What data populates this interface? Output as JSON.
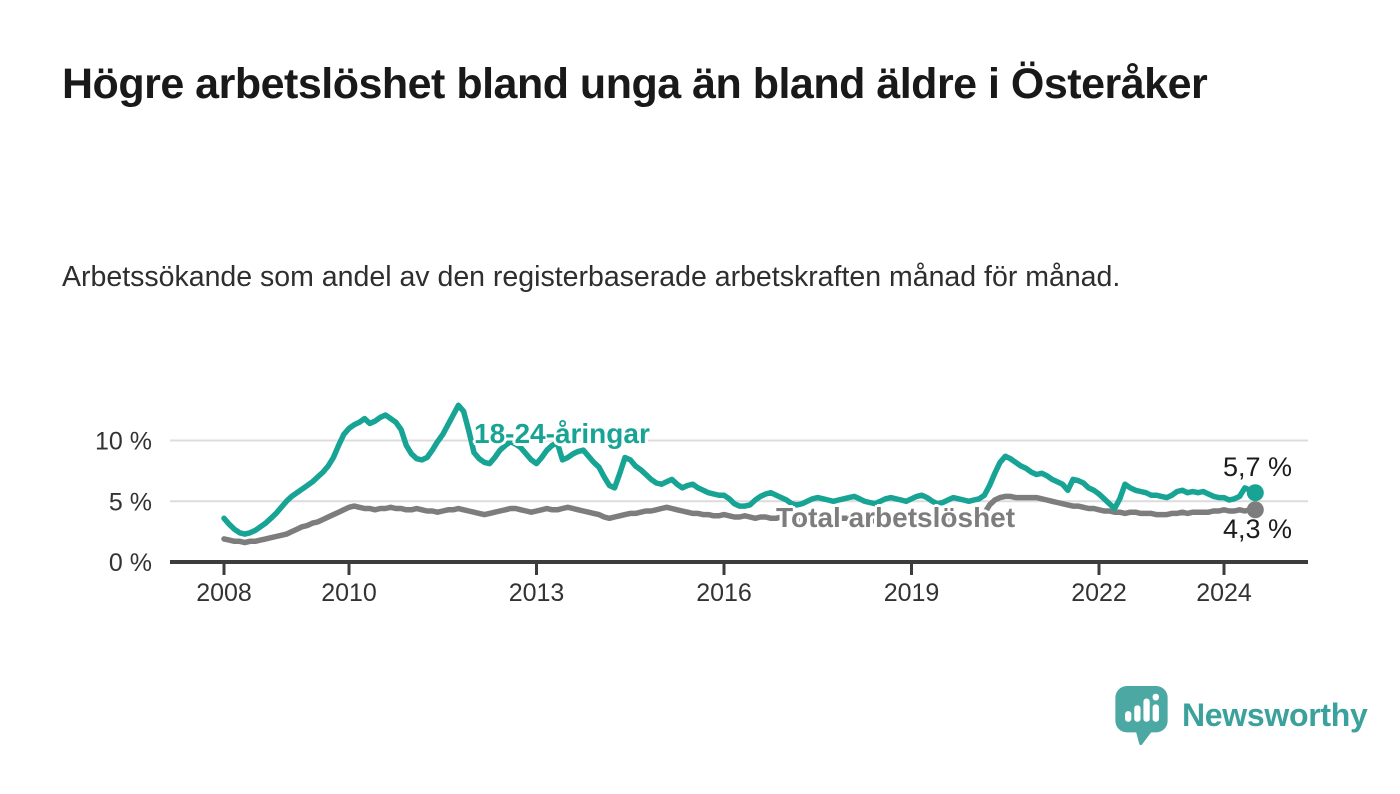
{
  "title": "Högre arbetslöshet bland unga än bland äldre i Österåker",
  "subtitle": "Arbetssökande som andel av den registerbaserade arbetskraften månad för månad.",
  "branding": {
    "name": "Newsworthy"
  },
  "colors": {
    "young_line": "#17A494",
    "total_line": "#7D7D7D",
    "axis": "#3C3C3C",
    "grid": "#DCDCDC",
    "logo_icon": "#4BA8A3",
    "logo_text": "#3BA19C"
  },
  "chart_data": {
    "type": "line",
    "title": "",
    "xlabel": "",
    "ylabel": "",
    "x_unit": "month",
    "x_start": "2008-01",
    "x_end": "2024-07",
    "ylim": [
      0,
      13.5
    ],
    "grid": "horizontal",
    "x_axis_ticks": [
      2008,
      2010,
      2013,
      2016,
      2019,
      2022,
      2024
    ],
    "x_tick_labels": [
      "2008",
      "2010",
      "2013",
      "2016",
      "2019",
      "2022",
      "2024"
    ],
    "y_axis_ticks": [
      {
        "value": 0,
        "label": "0 %"
      },
      {
        "value": 5,
        "label": "5 %"
      },
      {
        "value": 10,
        "label": "10 %"
      }
    ],
    "series": [
      {
        "name": "18-24-åringar",
        "color": "#17A494",
        "end_label": "5,7 %",
        "end_value": 5.7,
        "values": [
          3.6,
          3.1,
          2.7,
          2.4,
          2.3,
          2.4,
          2.6,
          2.9,
          3.2,
          3.6,
          4.0,
          4.5,
          5.0,
          5.4,
          5.7,
          6.0,
          6.3,
          6.6,
          7.0,
          7.4,
          7.9,
          8.6,
          9.6,
          10.5,
          11.0,
          11.3,
          11.5,
          11.8,
          11.4,
          11.6,
          11.9,
          12.1,
          11.8,
          11.5,
          10.9,
          9.6,
          8.9,
          8.5,
          8.4,
          8.6,
          9.2,
          9.9,
          10.5,
          11.3,
          12.1,
          12.9,
          12.4,
          10.8,
          9.0,
          8.5,
          8.2,
          8.1,
          8.6,
          9.2,
          9.6,
          9.9,
          9.7,
          9.4,
          8.9,
          8.4,
          8.1,
          8.6,
          9.2,
          9.6,
          9.8,
          8.4,
          8.6,
          8.9,
          9.1,
          9.2,
          8.7,
          8.2,
          7.8,
          7.0,
          6.3,
          6.1,
          7.3,
          8.6,
          8.4,
          7.9,
          7.6,
          7.2,
          6.8,
          6.5,
          6.4,
          6.6,
          6.8,
          6.4,
          6.1,
          6.3,
          6.4,
          6.1,
          5.9,
          5.7,
          5.6,
          5.5,
          5.5,
          5.2,
          4.8,
          4.6,
          4.6,
          4.7,
          5.1,
          5.4,
          5.6,
          5.7,
          5.5,
          5.3,
          5.1,
          4.8,
          4.7,
          4.8,
          5.0,
          5.2,
          5.3,
          5.2,
          5.1,
          5.0,
          5.1,
          5.2,
          5.3,
          5.4,
          5.2,
          5.0,
          4.9,
          4.8,
          5.0,
          5.2,
          5.3,
          5.2,
          5.1,
          5.0,
          5.2,
          5.4,
          5.5,
          5.3,
          5.0,
          4.8,
          4.9,
          5.1,
          5.3,
          5.2,
          5.1,
          5.0,
          5.1,
          5.2,
          5.5,
          6.3,
          7.3,
          8.2,
          8.7,
          8.5,
          8.2,
          7.9,
          7.7,
          7.4,
          7.2,
          7.3,
          7.1,
          6.8,
          6.6,
          6.4,
          5.9,
          6.8,
          6.7,
          6.5,
          6.1,
          5.9,
          5.6,
          5.2,
          4.8,
          4.4,
          5.2,
          6.4,
          6.1,
          5.9,
          5.8,
          5.7,
          5.5,
          5.5,
          5.4,
          5.3,
          5.5,
          5.8,
          5.9,
          5.7,
          5.8,
          5.7,
          5.8,
          5.6,
          5.4,
          5.3,
          5.3,
          5.1,
          5.2,
          5.4,
          6.1,
          5.9,
          5.7
        ]
      },
      {
        "name": "Total arbetslöshet",
        "color": "#7D7D7D",
        "end_label": "4,3 %",
        "end_value": 4.3,
        "values": [
          1.9,
          1.8,
          1.7,
          1.7,
          1.6,
          1.7,
          1.7,
          1.8,
          1.9,
          2.0,
          2.1,
          2.2,
          2.3,
          2.5,
          2.7,
          2.9,
          3.0,
          3.2,
          3.3,
          3.5,
          3.7,
          3.9,
          4.1,
          4.3,
          4.5,
          4.6,
          4.5,
          4.4,
          4.4,
          4.3,
          4.4,
          4.4,
          4.5,
          4.4,
          4.4,
          4.3,
          4.3,
          4.4,
          4.3,
          4.2,
          4.2,
          4.1,
          4.2,
          4.3,
          4.3,
          4.4,
          4.3,
          4.2,
          4.1,
          4.0,
          3.9,
          4.0,
          4.1,
          4.2,
          4.3,
          4.4,
          4.4,
          4.3,
          4.2,
          4.1,
          4.2,
          4.3,
          4.4,
          4.3,
          4.3,
          4.4,
          4.5,
          4.4,
          4.3,
          4.2,
          4.1,
          4.0,
          3.9,
          3.7,
          3.6,
          3.7,
          3.8,
          3.9,
          4.0,
          4.0,
          4.1,
          4.2,
          4.2,
          4.3,
          4.4,
          4.5,
          4.4,
          4.3,
          4.2,
          4.1,
          4.0,
          4.0,
          3.9,
          3.9,
          3.8,
          3.8,
          3.9,
          3.8,
          3.7,
          3.7,
          3.8,
          3.7,
          3.6,
          3.7,
          3.7,
          3.6,
          3.6,
          3.7,
          3.6,
          3.5,
          3.5,
          3.4,
          3.5,
          3.5,
          3.6,
          3.6,
          3.5,
          3.5,
          3.6,
          3.6,
          3.6,
          3.5,
          3.5,
          3.4,
          3.4,
          3.4,
          3.5,
          3.5,
          3.5,
          3.4,
          3.5,
          3.5,
          3.5,
          3.5,
          3.4,
          3.4,
          3.4,
          3.4,
          3.5,
          3.5,
          3.6,
          3.6,
          3.5,
          3.6,
          3.7,
          3.8,
          4.0,
          4.7,
          5.1,
          5.3,
          5.4,
          5.4,
          5.3,
          5.3,
          5.3,
          5.3,
          5.3,
          5.2,
          5.1,
          5.0,
          4.9,
          4.8,
          4.7,
          4.6,
          4.6,
          4.5,
          4.4,
          4.4,
          4.3,
          4.2,
          4.2,
          4.1,
          4.1,
          4.0,
          4.1,
          4.1,
          4.0,
          4.0,
          4.0,
          3.9,
          3.9,
          3.9,
          4.0,
          4.0,
          4.1,
          4.0,
          4.1,
          4.1,
          4.1,
          4.1,
          4.2,
          4.2,
          4.3,
          4.2,
          4.2,
          4.3,
          4.2,
          4.3,
          4.3
        ]
      }
    ]
  }
}
